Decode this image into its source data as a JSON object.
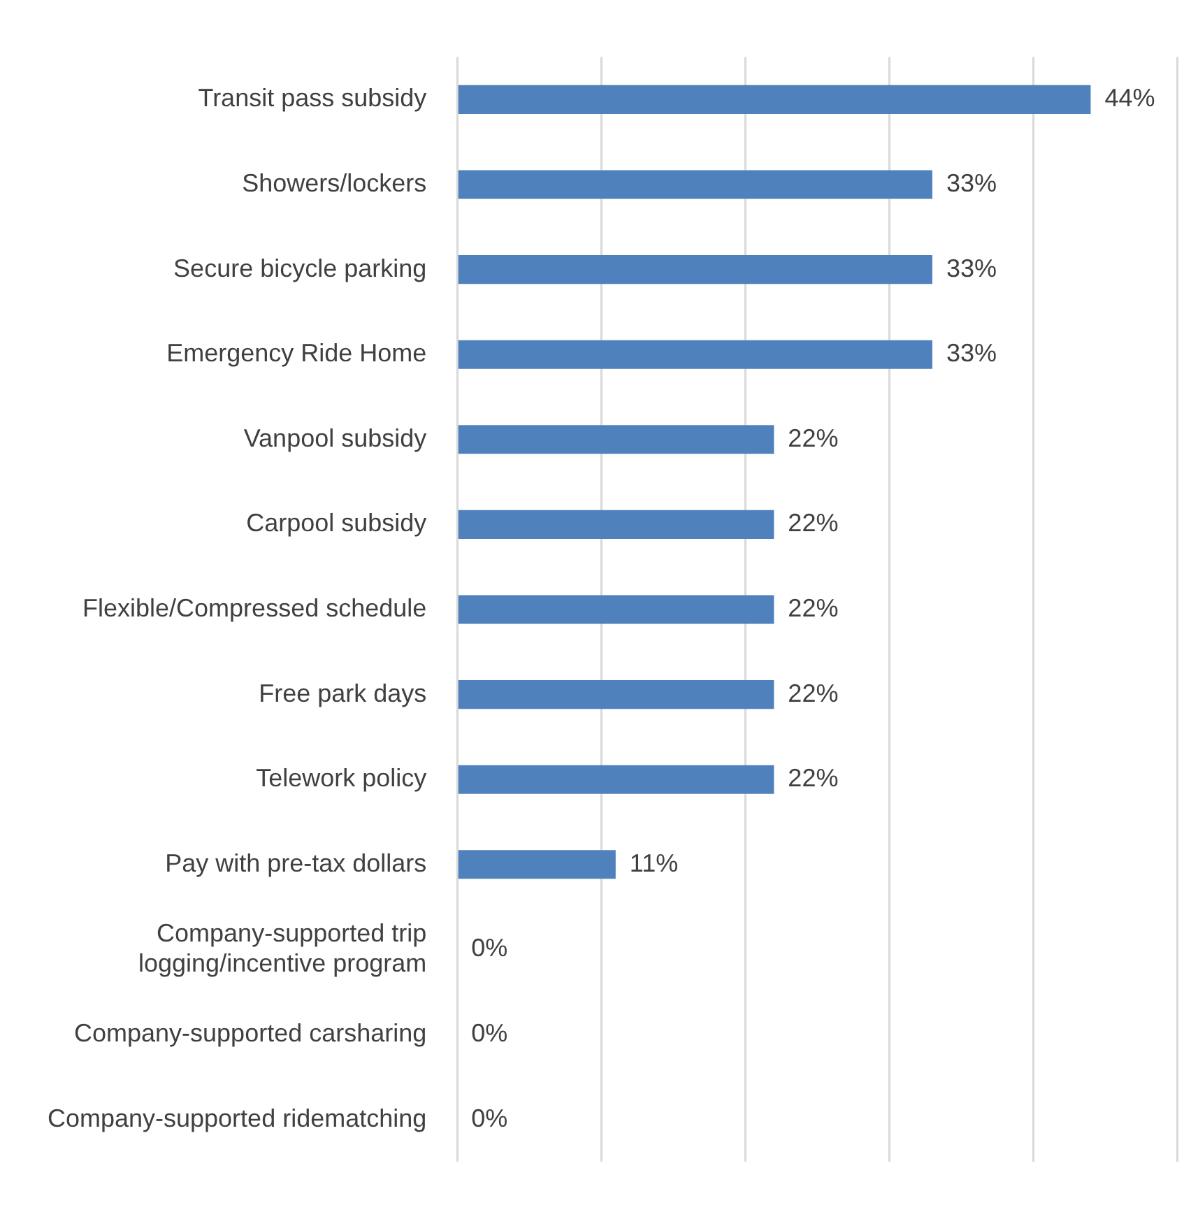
{
  "chart_data": {
    "type": "bar",
    "orientation": "horizontal",
    "categories": [
      "Transit pass subsidy",
      "Showers/lockers",
      "Secure bicycle parking",
      "Emergency Ride Home",
      "Vanpool subsidy",
      "Carpool subsidy",
      "Flexible/Compressed schedule",
      "Free park days",
      "Telework policy",
      "Pay with pre-tax dollars",
      "Company-supported trip logging/incentive program",
      "Company-supported carsharing",
      "Company-supported ridematching"
    ],
    "values": [
      44,
      33,
      33,
      33,
      22,
      22,
      22,
      22,
      22,
      11,
      0,
      0,
      0
    ],
    "value_labels": [
      "44%",
      "33%",
      "33%",
      "33%",
      "22%",
      "22%",
      "22%",
      "22%",
      "22%",
      "11%",
      "0%",
      "0%",
      "0%"
    ],
    "color": "#4f81bd",
    "xlim": [
      0,
      50
    ],
    "xticks": [
      {
        "value": 0,
        "label": null
      },
      {
        "value": 10,
        "label": null
      },
      {
        "value": 20,
        "label": null
      },
      {
        "value": 30,
        "label": null
      },
      {
        "value": 40,
        "label": null
      },
      {
        "value": 50,
        "label": null
      }
    ],
    "tick_labels": "y",
    "grid": "x",
    "legend": false
  }
}
